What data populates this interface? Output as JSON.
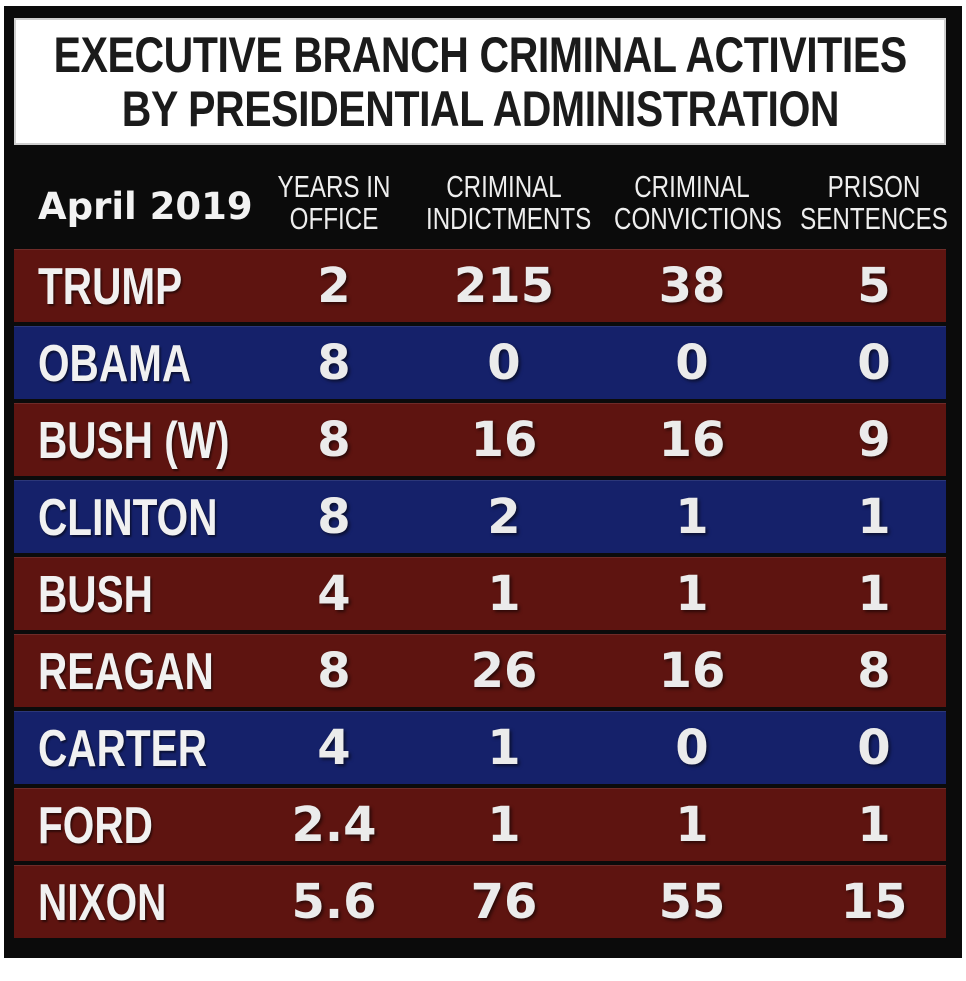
{
  "chart_data": {
    "type": "table",
    "title_lines": [
      "EXECUTIVE BRANCH CRIMINAL ACTIVITIES",
      "BY PRESIDENTIAL ADMINISTRATION"
    ],
    "date": "April 2019",
    "column_headers": [
      [
        "YEARS IN",
        "OFFICE"
      ],
      [
        "CRIMINAL",
        "INDICTMENTS"
      ],
      [
        "CRIMINAL",
        "CONVICTIONS"
      ],
      [
        "PRISON",
        "SENTENCES"
      ]
    ],
    "rows": [
      {
        "name": "TRUMP",
        "party": "red",
        "values": [
          "2",
          "215",
          "38",
          "5"
        ]
      },
      {
        "name": "OBAMA",
        "party": "blue",
        "values": [
          "8",
          "0",
          "0",
          "0"
        ]
      },
      {
        "name": "BUSH (W)",
        "party": "red",
        "values": [
          "8",
          "16",
          "16",
          "9"
        ]
      },
      {
        "name": "CLINTON",
        "party": "blue",
        "values": [
          "8",
          "2",
          "1",
          "1"
        ]
      },
      {
        "name": "BUSH",
        "party": "red",
        "values": [
          "4",
          "1",
          "1",
          "1"
        ]
      },
      {
        "name": "REAGAN",
        "party": "red",
        "values": [
          "8",
          "26",
          "16",
          "8"
        ]
      },
      {
        "name": "CARTER",
        "party": "blue",
        "values": [
          "4",
          "1",
          "0",
          "0"
        ]
      },
      {
        "name": "FORD",
        "party": "red",
        "values": [
          "2.4",
          "1",
          "1",
          "1"
        ]
      },
      {
        "name": "NIXON",
        "party": "red",
        "values": [
          "5.6",
          "76",
          "55",
          "15"
        ]
      }
    ]
  },
  "colors": {
    "red_row": "#5e1410",
    "blue_row": "#15216a",
    "background": "#0b0b0b",
    "title_background": "#ffffff"
  }
}
